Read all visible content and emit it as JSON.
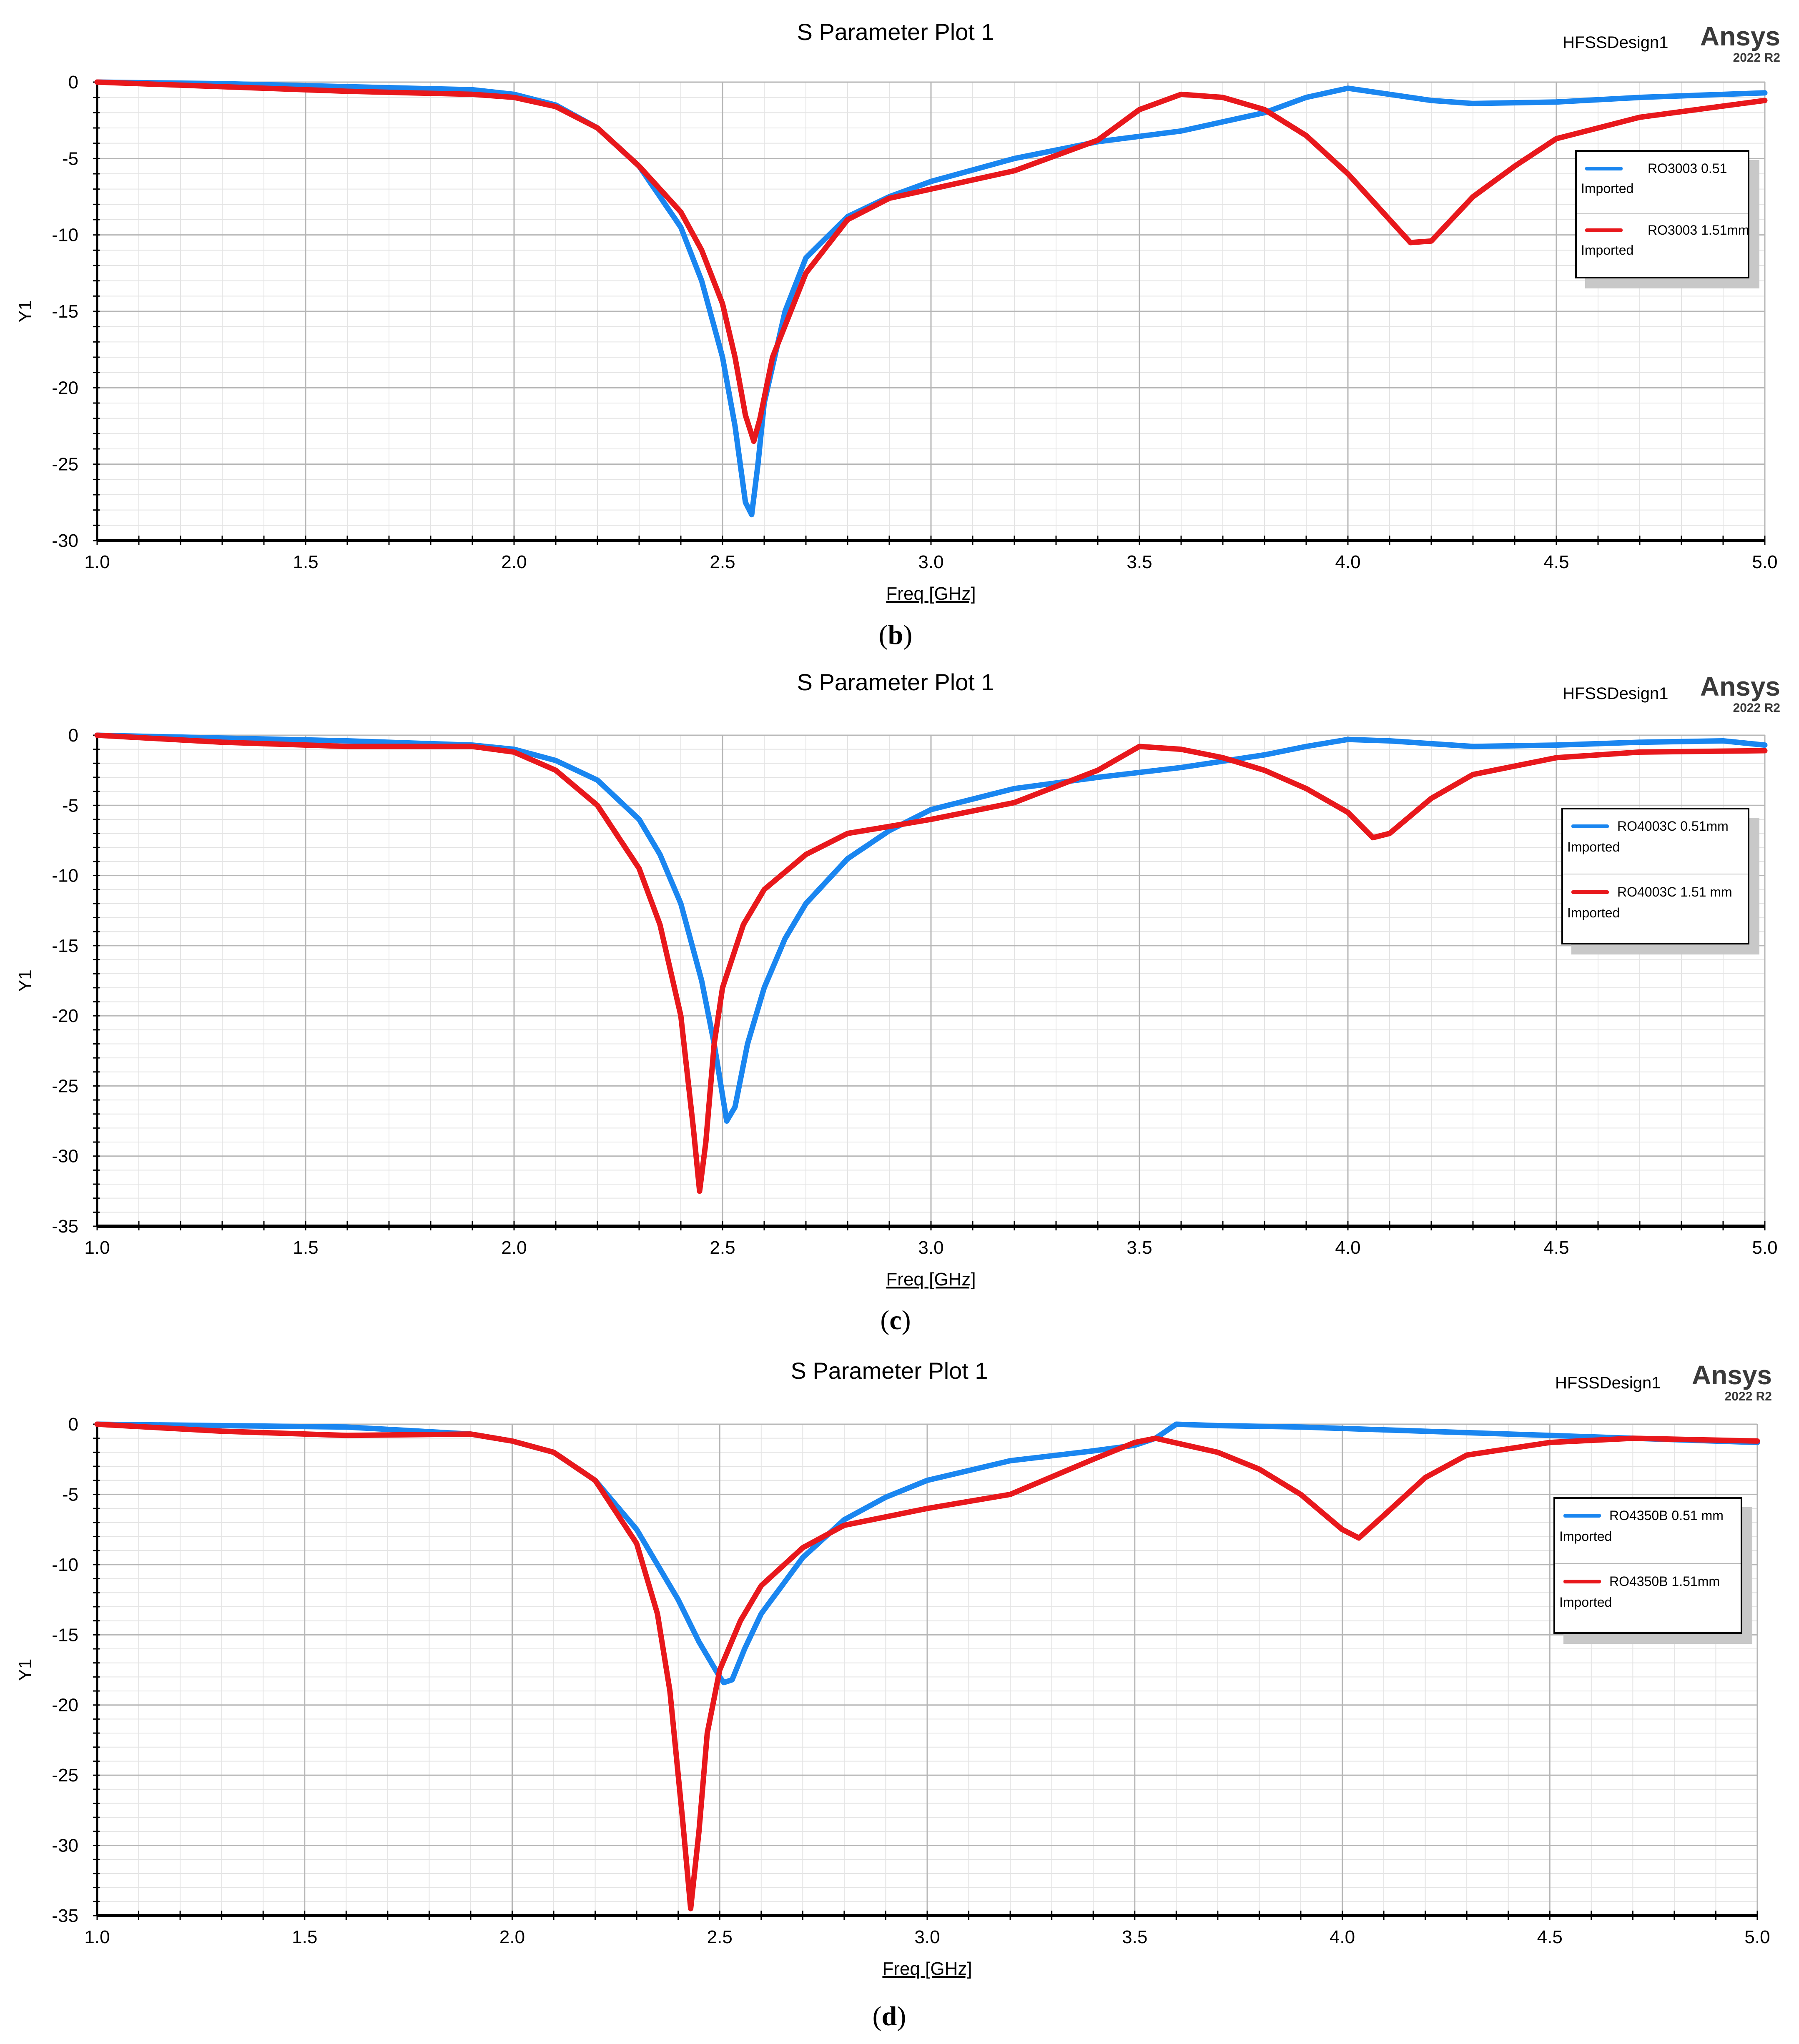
{
  "figure": {
    "panels": [
      {
        "caption_letter": "b",
        "design": "HFSSDesign1",
        "brand": "Ansys",
        "version": "2022 R2"
      },
      {
        "caption_letter": "c",
        "design": "HFSSDesign1",
        "brand": "Ansys",
        "version": "2022 R2"
      },
      {
        "caption_letter": "d",
        "design": "HFSSDesign1",
        "brand": "Ansys",
        "version": "2022 R2"
      }
    ]
  },
  "chart_data": [
    {
      "type": "line",
      "title": "S Parameter Plot 1",
      "xlabel": "Freq [GHz]",
      "ylabel": "Y1",
      "xlim": [
        1.0,
        5.0
      ],
      "ylim": [
        -30,
        0
      ],
      "xticks": [
        "1.0",
        "1.5",
        "2.0",
        "2.5",
        "3.0",
        "3.5",
        "4.0",
        "4.5",
        "5.0"
      ],
      "yticks": [
        "0",
        "-5",
        "-10",
        "-15",
        "-20",
        "-25",
        "-30"
      ],
      "grid": true,
      "legend_position": "upper-right",
      "series": [
        {
          "name": "RO3003 0.51",
          "note": "Imported",
          "color": "#1a86f0",
          "x": [
            1.0,
            1.3,
            1.6,
            1.9,
            2.0,
            2.1,
            2.2,
            2.3,
            2.4,
            2.45,
            2.5,
            2.53,
            2.555,
            2.57,
            2.585,
            2.6,
            2.65,
            2.7,
            2.8,
            2.9,
            3.0,
            3.2,
            3.4,
            3.6,
            3.8,
            3.9,
            4.0,
            4.1,
            4.2,
            4.3,
            4.5,
            4.7,
            5.0
          ],
          "y": [
            0,
            -0.1,
            -0.3,
            -0.5,
            -0.8,
            -1.5,
            -3.0,
            -5.5,
            -9.5,
            -13.0,
            -18.0,
            -22.5,
            -27.5,
            -28.3,
            -25.0,
            -21.0,
            -15.0,
            -11.5,
            -8.8,
            -7.5,
            -6.5,
            -5.0,
            -3.9,
            -3.2,
            -2.0,
            -1.0,
            -0.4,
            -0.8,
            -1.2,
            -1.4,
            -1.3,
            -1.0,
            -0.7
          ]
        },
        {
          "name": "RO3003 1.51mm",
          "note": "Imported",
          "color": "#e8181c",
          "x": [
            1.0,
            1.3,
            1.6,
            1.9,
            2.0,
            2.1,
            2.2,
            2.3,
            2.4,
            2.45,
            2.5,
            2.53,
            2.555,
            2.575,
            2.59,
            2.62,
            2.7,
            2.8,
            2.9,
            3.0,
            3.2,
            3.4,
            3.5,
            3.6,
            3.7,
            3.8,
            3.9,
            4.0,
            4.1,
            4.15,
            4.2,
            4.3,
            4.4,
            4.5,
            4.7,
            5.0
          ],
          "y": [
            0,
            -0.3,
            -0.6,
            -0.8,
            -1.0,
            -1.6,
            -3.0,
            -5.5,
            -8.5,
            -11.0,
            -14.5,
            -18.0,
            -21.8,
            -23.5,
            -22.0,
            -18.0,
            -12.5,
            -9.0,
            -7.6,
            -7.0,
            -5.8,
            -3.8,
            -1.8,
            -0.8,
            -1.0,
            -1.8,
            -3.5,
            -6.0,
            -9.0,
            -10.5,
            -10.4,
            -7.5,
            -5.5,
            -3.7,
            -2.3,
            -1.2
          ]
        }
      ]
    },
    {
      "type": "line",
      "title": "S Parameter Plot 1",
      "xlabel": "Freq [GHz]",
      "ylabel": "Y1",
      "xlim": [
        1.0,
        5.0
      ],
      "ylim": [
        -35,
        0
      ],
      "xticks": [
        "1.0",
        "1.5",
        "2.0",
        "2.5",
        "3.0",
        "3.5",
        "4.0",
        "4.5",
        "5.0"
      ],
      "yticks": [
        "0",
        "-5",
        "-10",
        "-15",
        "-20",
        "-25",
        "-30",
        "-35"
      ],
      "grid": true,
      "legend_position": "upper-right",
      "series": [
        {
          "name": "RO4003C 0.51mm",
          "note": "Imported",
          "color": "#1a86f0",
          "x": [
            1.0,
            1.3,
            1.6,
            1.9,
            2.0,
            2.1,
            2.2,
            2.3,
            2.35,
            2.4,
            2.45,
            2.48,
            2.51,
            2.53,
            2.56,
            2.6,
            2.65,
            2.7,
            2.8,
            2.9,
            3.0,
            3.2,
            3.4,
            3.6,
            3.8,
            3.9,
            4.0,
            4.1,
            4.3,
            4.5,
            4.7,
            4.9,
            5.0
          ],
          "y": [
            0,
            -0.2,
            -0.4,
            -0.7,
            -1.0,
            -1.8,
            -3.2,
            -6.0,
            -8.5,
            -12.0,
            -17.5,
            -22.0,
            -27.5,
            -26.5,
            -22.0,
            -18.0,
            -14.5,
            -12.0,
            -8.8,
            -6.8,
            -5.3,
            -3.8,
            -3.0,
            -2.3,
            -1.4,
            -0.8,
            -0.3,
            -0.4,
            -0.8,
            -0.7,
            -0.5,
            -0.4,
            -0.7
          ]
        },
        {
          "name": "RO4003C 1.51 mm",
          "note": "Imported",
          "color": "#e8181c",
          "x": [
            1.0,
            1.3,
            1.6,
            1.9,
            2.0,
            2.1,
            2.2,
            2.3,
            2.35,
            2.4,
            2.43,
            2.445,
            2.46,
            2.48,
            2.5,
            2.55,
            2.6,
            2.7,
            2.8,
            2.9,
            3.0,
            3.2,
            3.4,
            3.5,
            3.6,
            3.7,
            3.8,
            3.9,
            4.0,
            4.06,
            4.1,
            4.2,
            4.3,
            4.5,
            4.7,
            5.0
          ],
          "y": [
            0,
            -0.5,
            -0.8,
            -0.8,
            -1.2,
            -2.5,
            -5.0,
            -9.5,
            -13.5,
            -20.0,
            -28.0,
            -32.5,
            -29.0,
            -22.0,
            -18.0,
            -13.5,
            -11.0,
            -8.5,
            -7.0,
            -6.5,
            -6.0,
            -4.8,
            -2.5,
            -0.8,
            -1.0,
            -1.6,
            -2.5,
            -3.8,
            -5.5,
            -7.3,
            -7.0,
            -4.5,
            -2.8,
            -1.6,
            -1.2,
            -1.1
          ]
        }
      ]
    },
    {
      "type": "line",
      "title": "S Parameter Plot 1",
      "xlabel": "Freq [GHz]",
      "ylabel": "Y1",
      "xlim": [
        1.0,
        5.0
      ],
      "ylim": [
        -35,
        0
      ],
      "xticks": [
        "1.0",
        "1.5",
        "2.0",
        "2.5",
        "3.0",
        "3.5",
        "4.0",
        "4.5",
        "5.0"
      ],
      "yticks": [
        "0",
        "-5",
        "-10",
        "-15",
        "-20",
        "-25",
        "-30",
        "-35"
      ],
      "grid": true,
      "legend_position": "upper-right",
      "series": [
        {
          "name": "RO4350B 0.51 mm",
          "note": "Imported",
          "color": "#1a86f0",
          "x": [
            1.0,
            1.3,
            1.6,
            1.9,
            2.0,
            2.1,
            2.2,
            2.3,
            2.4,
            2.45,
            2.5,
            2.51,
            2.53,
            2.56,
            2.6,
            2.7,
            2.8,
            2.9,
            3.0,
            3.2,
            3.4,
            3.5,
            3.55,
            3.6,
            3.7,
            3.9,
            4.0,
            4.1,
            4.3,
            4.5,
            4.7,
            5.0
          ],
          "y": [
            0,
            -0.1,
            -0.2,
            -0.7,
            -1.2,
            -2.0,
            -4.0,
            -7.5,
            -12.5,
            -15.5,
            -18.0,
            -18.4,
            -18.2,
            -16.0,
            -13.5,
            -9.5,
            -6.8,
            -5.2,
            -4.0,
            -2.6,
            -1.9,
            -1.5,
            -1.0,
            0.0,
            -0.1,
            -0.2,
            -0.3,
            -0.4,
            -0.6,
            -0.8,
            -1.0,
            -1.3
          ]
        },
        {
          "name": "RO4350B 1.51mm",
          "note": "Imported",
          "color": "#e8181c",
          "x": [
            1.0,
            1.3,
            1.6,
            1.9,
            2.0,
            2.1,
            2.2,
            2.3,
            2.35,
            2.38,
            2.41,
            2.43,
            2.45,
            2.47,
            2.5,
            2.55,
            2.6,
            2.7,
            2.8,
            3.0,
            3.2,
            3.4,
            3.5,
            3.55,
            3.7,
            3.8,
            3.9,
            4.0,
            4.04,
            4.1,
            4.2,
            4.3,
            4.5,
            4.7,
            5.0
          ],
          "y": [
            0,
            -0.5,
            -0.8,
            -0.7,
            -1.2,
            -2.0,
            -4.0,
            -8.5,
            -13.5,
            -19.0,
            -28.0,
            -34.5,
            -29.0,
            -22.0,
            -17.5,
            -14.0,
            -11.5,
            -8.8,
            -7.2,
            -6.0,
            -5.0,
            -2.5,
            -1.3,
            -1.0,
            -2.0,
            -3.2,
            -5.0,
            -7.5,
            -8.1,
            -6.5,
            -3.8,
            -2.2,
            -1.3,
            -1.0,
            -1.2
          ]
        }
      ]
    }
  ]
}
